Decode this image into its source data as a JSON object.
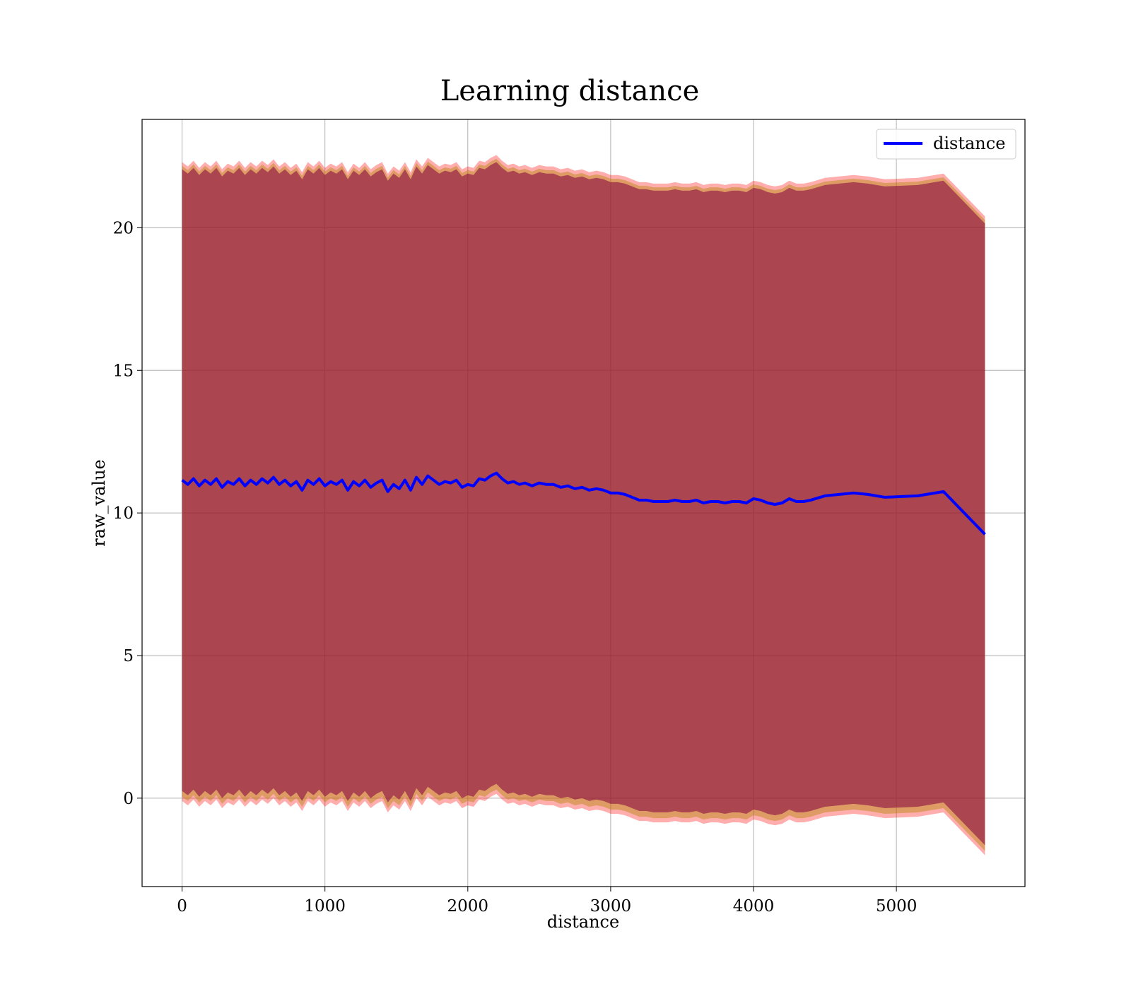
{
  "chart_data": {
    "type": "line",
    "title": "Learning distance",
    "xlabel": "distance",
    "ylabel": "raw_value",
    "xlim": [
      -280,
      5900
    ],
    "ylim": [
      -3.1,
      23.8
    ],
    "xticks": [
      0,
      1000,
      2000,
      3000,
      4000,
      5000
    ],
    "yticks": [
      0,
      5,
      10,
      15,
      20
    ],
    "grid": true,
    "legend_position": "top-right",
    "colors": {
      "line": "#0000ff",
      "band_outer": "#ff0000",
      "band_mid": "#b8860b",
      "band_inner": "#800040",
      "grid": "#b0b0b0"
    },
    "series": [
      {
        "name": "distance",
        "x": [
          0,
          40,
          80,
          120,
          160,
          200,
          240,
          280,
          320,
          360,
          400,
          440,
          480,
          520,
          560,
          600,
          640,
          680,
          720,
          760,
          800,
          840,
          880,
          920,
          960,
          1000,
          1040,
          1080,
          1120,
          1160,
          1200,
          1240,
          1280,
          1320,
          1360,
          1400,
          1440,
          1480,
          1520,
          1560,
          1600,
          1640,
          1680,
          1720,
          1760,
          1800,
          1840,
          1880,
          1920,
          1960,
          2000,
          2040,
          2080,
          2120,
          2160,
          2200,
          2240,
          2280,
          2320,
          2360,
          2400,
          2450,
          2500,
          2550,
          2600,
          2650,
          2700,
          2750,
          2800,
          2850,
          2900,
          2950,
          3000,
          3050,
          3100,
          3150,
          3200,
          3250,
          3300,
          3350,
          3400,
          3450,
          3500,
          3550,
          3600,
          3650,
          3700,
          3750,
          3800,
          3850,
          3900,
          3950,
          4000,
          4050,
          4100,
          4150,
          4200,
          4250,
          4300,
          4350,
          4400,
          4500,
          4600,
          4700,
          4800,
          4920,
          5150,
          5330,
          5620
        ],
        "values": [
          11.15,
          11.0,
          11.2,
          10.95,
          11.15,
          11.0,
          11.2,
          10.9,
          11.1,
          11.0,
          11.2,
          10.95,
          11.15,
          11.0,
          11.2,
          11.05,
          11.25,
          11.0,
          11.15,
          10.95,
          11.1,
          10.8,
          11.15,
          11.0,
          11.2,
          10.95,
          11.1,
          11.0,
          11.15,
          10.8,
          11.1,
          10.95,
          11.15,
          10.9,
          11.05,
          11.15,
          10.75,
          11.0,
          10.85,
          11.15,
          10.8,
          11.25,
          11.0,
          11.3,
          11.15,
          11.0,
          11.1,
          11.05,
          11.15,
          10.9,
          11.0,
          10.95,
          11.2,
          11.15,
          11.3,
          11.4,
          11.2,
          11.05,
          11.1,
          11.0,
          11.05,
          10.95,
          11.05,
          11.0,
          11.0,
          10.9,
          10.95,
          10.85,
          10.9,
          10.8,
          10.85,
          10.8,
          10.7,
          10.7,
          10.65,
          10.55,
          10.45,
          10.45,
          10.4,
          10.4,
          10.4,
          10.45,
          10.4,
          10.4,
          10.45,
          10.35,
          10.4,
          10.4,
          10.35,
          10.4,
          10.4,
          10.35,
          10.5,
          10.45,
          10.35,
          10.3,
          10.35,
          10.5,
          10.4,
          10.4,
          10.45,
          10.6,
          10.65,
          10.7,
          10.65,
          10.55,
          10.6,
          10.75,
          9.25
        ]
      }
    ],
    "band_halfwidth": 10.9
  }
}
